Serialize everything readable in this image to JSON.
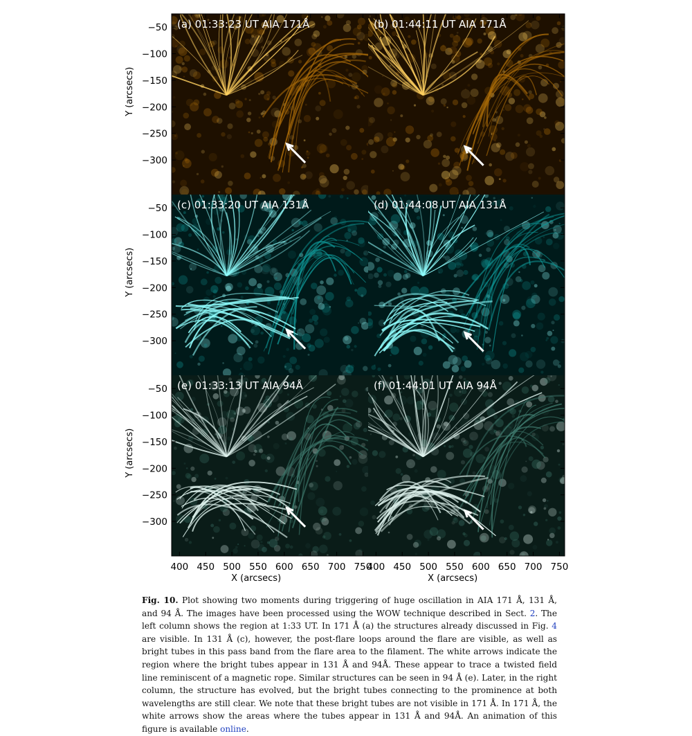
{
  "figure": {
    "panels": [
      {
        "label": "(a) 01:33:23 UT AIA 171Å",
        "channel": "171",
        "colors": {
          "dark": "#1e1000",
          "mid": "#a86a08",
          "bright": "#ffd060"
        }
      },
      {
        "label": "(b) 01:44:11 UT AIA 171Å",
        "channel": "171",
        "colors": {
          "dark": "#1e1000",
          "mid": "#a86a08",
          "bright": "#ffd060"
        }
      },
      {
        "label": "(c) 01:33:20 UT AIA 131Å",
        "channel": "131",
        "colors": {
          "dark": "#001a1a",
          "mid": "#0e9696",
          "bright": "#8ffcfc"
        }
      },
      {
        "label": "(d) 01:44:08 UT AIA 131Å",
        "channel": "131",
        "colors": {
          "dark": "#001a1a",
          "mid": "#0e9696",
          "bright": "#8ffcfc"
        }
      },
      {
        "label": "(e) 01:33:13 UT AIA 94Å",
        "channel": "94",
        "colors": {
          "dark": "#0a1c18",
          "mid": "#3f7a6e",
          "bright": "#dff3ee"
        }
      },
      {
        "label": "(f) 01:44:01 UT AIA 94Å",
        "channel": "94",
        "colors": {
          "dark": "#0a1c18",
          "mid": "#3f7a6e",
          "bright": "#dff3ee"
        }
      }
    ],
    "y_axis": {
      "label": "Y (arcsecs)",
      "ticks": [
        "−50",
        "−100",
        "−150",
        "−200",
        "−250",
        "−300"
      ],
      "range": [
        -25,
        -365
      ]
    },
    "x_axis": {
      "label": "X (arcsecs)",
      "ticks_left": [
        "400",
        "450",
        "500",
        "550",
        "600",
        "650",
        "700",
        "750"
      ],
      "ticks_right": [
        "400",
        "450",
        "500",
        "550",
        "600",
        "650",
        "700",
        "750"
      ],
      "range": [
        385,
        760
      ]
    },
    "arrows": [
      {
        "panel": 0,
        "from_data": [
          640,
          -305
        ],
        "to_data": [
          605,
          -270
        ]
      },
      {
        "panel": 1,
        "from_data": [
          605,
          -310
        ],
        "to_data": [
          570,
          -275
        ]
      },
      {
        "panel": 2,
        "from_data": [
          640,
          -315
        ],
        "to_data": [
          605,
          -280
        ]
      },
      {
        "panel": 3,
        "from_data": [
          605,
          -320
        ],
        "to_data": [
          570,
          -285
        ]
      },
      {
        "panel": 4,
        "from_data": [
          640,
          -310
        ],
        "to_data": [
          605,
          -275
        ]
      },
      {
        "panel": 5,
        "from_data": [
          605,
          -315
        ],
        "to_data": [
          570,
          -280
        ]
      }
    ],
    "arrow_color": "#ffffff"
  },
  "caption": {
    "fig_label": "Fig. 10.",
    "part1": " Plot showing two moments during triggering of huge oscillation in AIA 171 Å, 131 Å, and 94 Å. The images have been processed using the WOW technique described in Sect. ",
    "ref_sect": "2",
    "part2": ". The left column shows the region at 1:33 UT. In 171 Å (a) the structures already discussed in Fig. ",
    "ref_fig": "4",
    "part3": " are visible. In 131 Å (c), however, the post-flare loops around the flare are visible, as well as bright tubes in this pass band from the flare area to the filament. The white arrows indicate the region where the bright tubes appear in 131 Å and 94Å. These appear to trace a twisted field line reminiscent of a magnetic rope. Similar structures can be seen in 94 Å (e). Later, in the right column, the structure has evolved, but the bright tubes connecting to the prominence at both wavelengths are still clear. We note that these bright tubes are not visible in 171 Å. In 171 Å, the white arrows show the areas where the tubes appear in 131 Å and 94Å. An animation of this figure is available ",
    "link_text": "online",
    "part4": "."
  }
}
